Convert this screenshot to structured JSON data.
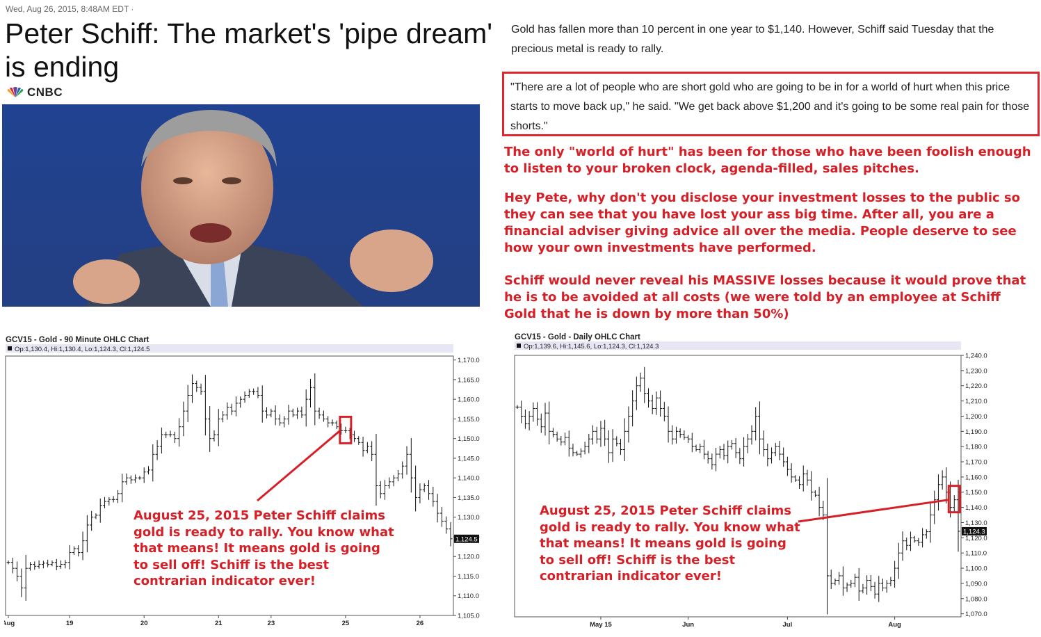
{
  "article": {
    "dateline": "Wed, Aug 26, 2015, 8:48AM EDT ·",
    "headline": "Peter Schiff: The market's 'pipe dream' is ending",
    "source": "CNBC",
    "body": "Gold has fallen more than 10 percent in one year to $1,140. However, Schiff said Tuesday that the precious metal is ready to rally.",
    "quote": "\"There are a lot of people who are short gold who are going to be in for a world of hurt when this price starts to move back up,\" he said. \"We get back above $1,200 and it's going to be some real pain for those shorts.\""
  },
  "commentary": [
    "The only \"world of hurt\" has been for those who have been foolish enough to listen to your broken clock, agenda-filled, sales pitches.",
    "Hey Pete, why don't you disclose your investment losses to the public so they can see that you have lost your ass big time. After all, you are a financial adviser giving advice all over the media. People deserve to see how your own investments have performed.",
    "Schiff would never reveal his MASSIVE losses because it would prove that he is to be avoided at all costs (we were told by an employee at Schiff Gold that he is down by more than 50%)"
  ],
  "colors": {
    "accent_red": "#d62027",
    "header_band": "#e6e6f5"
  },
  "chart_data": [
    {
      "type": "ohlc",
      "title": "GCV15 - Gold - 90 Minute OHLC Chart",
      "ohlc_label": "Op:1,130.4, Hi:1,130.4, Lo:1,124.3, Cl:1,124.5",
      "last_price_label": "1,124.5",
      "ylim": [
        1105,
        1171
      ],
      "yticks": [
        "1,170.0",
        "1,165.0",
        "1,160.0",
        "1,155.0",
        "1,150.0",
        "1,145.0",
        "1,140.0",
        "1,135.0",
        "1,130.0",
        "1,125.0",
        "1,120.0",
        "1,115.0",
        "1,110.0",
        "1,105.0"
      ],
      "ytick_values": [
        1170,
        1165,
        1160,
        1155,
        1150,
        1145,
        1140,
        1135,
        1130,
        1125,
        1120,
        1115,
        1110,
        1105
      ],
      "xticks": [
        "Aug",
        "19",
        "20",
        "21",
        "23",
        "25",
        "26"
      ],
      "xtick_bar_index": [
        0,
        14,
        31,
        48,
        60,
        77,
        94
      ],
      "closes": [
        1118.5,
        1117,
        1115,
        1112,
        1117,
        1118,
        1117.5,
        1118,
        1118.3,
        1118,
        1118.5,
        1117.5,
        1118,
        1118.5,
        1121,
        1122,
        1121,
        1124,
        1128,
        1130,
        1130.5,
        1133,
        1134,
        1134.5,
        1134.5,
        1136,
        1139,
        1140,
        1139.5,
        1140,
        1140,
        1141.5,
        1142,
        1146,
        1148,
        1151,
        1151,
        1151,
        1150,
        1153,
        1157,
        1161,
        1164,
        1163,
        1162,
        1155,
        1150,
        1151,
        1155,
        1156,
        1158,
        1157,
        1159,
        1160,
        1161,
        1162,
        1162,
        1161,
        1157,
        1156,
        1157,
        1155,
        1154,
        1155,
        1157,
        1156,
        1157,
        1156,
        1160,
        1163,
        1157,
        1156,
        1155,
        1154,
        1154,
        1153,
        1152,
        1152,
        1151,
        1150,
        1149,
        1147,
        1148,
        1146,
        1138,
        1136,
        1138,
        1139,
        1140,
        1141,
        1143,
        1146,
        1140,
        1135,
        1137,
        1138,
        1136,
        1134,
        1131,
        1129,
        1127,
        1124.5
      ],
      "annotation": "August 25, 2015 Peter Schiff claims gold is ready to rally. You know what that means! It means gold is going to sell off! Schiff is the best contrarian indicator ever!"
    },
    {
      "type": "ohlc",
      "title": "GCV15 - Gold - Daily OHLC Chart",
      "ohlc_label": "Op:1,139.6, Hi:1,145.6, Lo:1,124.3, Cl:1,124.3",
      "last_price_label": "1,124.3",
      "ylim": [
        1068,
        1240
      ],
      "yticks": [
        "1,240.0",
        "1,230.0",
        "1,220.0",
        "1,210.0",
        "1,200.0",
        "1,190.0",
        "1,180.0",
        "1,170.0",
        "1,160.0",
        "1,150.0",
        "1,140.0",
        "1,130.0",
        "1,120.0",
        "1,110.0",
        "1,100.0",
        "1,090.0",
        "1,080.0",
        "1,070.0"
      ],
      "ytick_values": [
        1240,
        1230,
        1220,
        1210,
        1200,
        1190,
        1180,
        1170,
        1160,
        1150,
        1140,
        1130,
        1120,
        1110,
        1100,
        1090,
        1080,
        1070
      ],
      "xticks": [
        "May 15",
        "Jun",
        "Jul",
        "Aug"
      ],
      "xtick_bar_index": [
        21,
        43,
        68,
        95
      ],
      "closes": [
        1206,
        1200,
        1195,
        1200,
        1205,
        1198,
        1193,
        1202,
        1190,
        1188,
        1185,
        1183,
        1186,
        1179,
        1176,
        1175,
        1177,
        1180,
        1185,
        1190,
        1185,
        1192,
        1185,
        1176,
        1185,
        1182,
        1178,
        1190,
        1200,
        1210,
        1220,
        1225,
        1215,
        1210,
        1205,
        1212,
        1205,
        1200,
        1190,
        1185,
        1190,
        1188,
        1186,
        1185,
        1180,
        1178,
        1180,
        1175,
        1172,
        1168,
        1175,
        1178,
        1174,
        1180,
        1182,
        1176,
        1172,
        1180,
        1185,
        1190,
        1200,
        1185,
        1178,
        1172,
        1176,
        1180,
        1175,
        1170,
        1165,
        1160,
        1158,
        1155,
        1162,
        1158,
        1150,
        1148,
        1140,
        1135,
        1095,
        1090,
        1092,
        1095,
        1087,
        1089,
        1090,
        1094,
        1085,
        1087,
        1092,
        1088,
        1083,
        1090,
        1087,
        1090,
        1092,
        1100,
        1110,
        1118,
        1115,
        1120,
        1118,
        1117,
        1122,
        1124,
        1135,
        1145,
        1155,
        1160,
        1150,
        1140,
        1145,
        1124.3
      ],
      "annotation": "August 25, 2015 Peter Schiff claims gold is ready to rally. You know what that means! It means gold is going to sell off! Schiff is the best contrarian indicator ever!"
    }
  ]
}
